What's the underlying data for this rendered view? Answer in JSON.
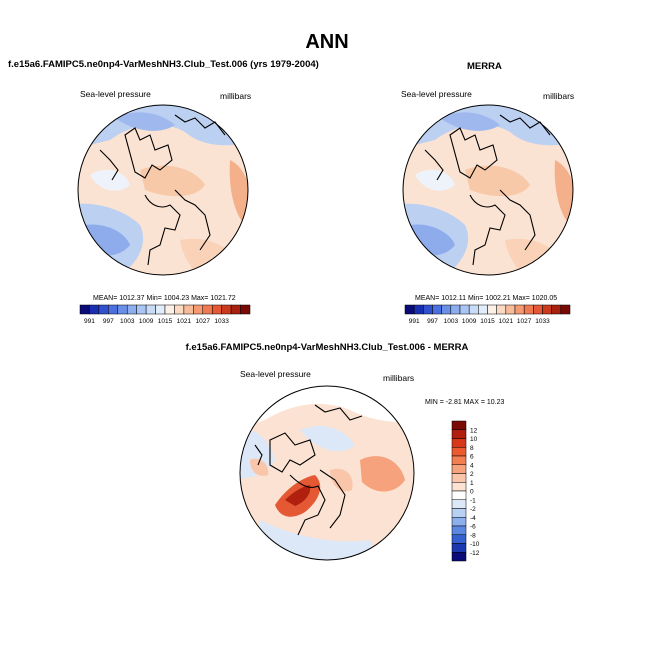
{
  "title": "ANN",
  "panels": {
    "model": {
      "title": "f.e15a6.FAMIPC5.ne0np4-VarMeshNH3.Club_Test.006 (yrs 1979-2004)",
      "variable": "Sea-level pressure",
      "units": "millibars",
      "stats": "MEAN= 1012.37  Min= 1004.23  Max= 1021.72"
    },
    "obs": {
      "title": "MERRA",
      "variable": "Sea-level pressure",
      "units": "millibars",
      "stats": "MEAN= 1012.11  Min= 1002.21  Max= 1020.05"
    },
    "diff": {
      "title": "f.e15a6.FAMIPC5.ne0np4-VarMeshNH3.Club_Test.006 - MERRA",
      "variable": "Sea-level pressure",
      "units": "millibars",
      "stats": "MIN =  -2.81  MAX =  10.23"
    }
  },
  "colorbars": {
    "absolute": {
      "labels": [
        "991",
        "997",
        "1003",
        "1009",
        "1015",
        "1021",
        "1027",
        "1033"
      ],
      "colors": [
        "#0a0a78",
        "#1a2fb0",
        "#3050d0",
        "#4a70e0",
        "#6a8fe6",
        "#8caeee",
        "#aac5f4",
        "#c8dcf8",
        "#e2edfb",
        "#fdf0e6",
        "#fbd9c2",
        "#f8bc9a",
        "#f59a72",
        "#ef7a52",
        "#e45834",
        "#cc3a1e",
        "#a8200f",
        "#7a0a05"
      ]
    },
    "difference": {
      "labels": [
        "12",
        "10",
        "8",
        "6",
        "4",
        "2",
        "1",
        "0",
        "-1",
        "-2",
        "-4",
        "-6",
        "-8",
        "-10",
        "-12"
      ],
      "colors": [
        "#7a0a05",
        "#b0200e",
        "#d8381a",
        "#ec5a30",
        "#f27e52",
        "#f6a27c",
        "#f9c6aa",
        "#fce2d2",
        "#ffffff",
        "#dce8f8",
        "#b8d0f2",
        "#8cb0ec",
        "#5c88e2",
        "#3460d0",
        "#1a38b0",
        "#0a0a78"
      ]
    }
  }
}
